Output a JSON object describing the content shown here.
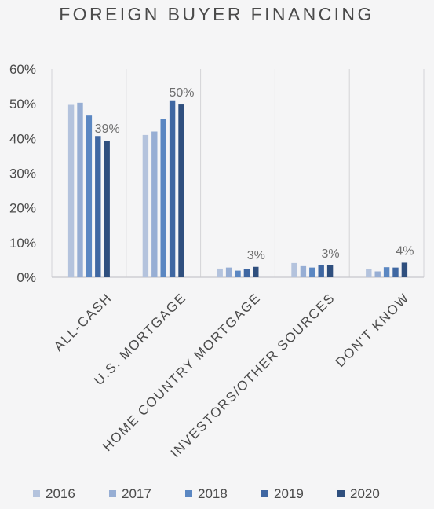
{
  "chart_data": {
    "type": "bar",
    "title": "FOREIGN BUYER FINANCING",
    "categories": [
      "ALL-CASH",
      "U.S. MORTGAGE",
      "HOME COUNTRY MORTGAGE",
      "INVESTORS/OTHER SOURCES",
      "DON'T KNOW"
    ],
    "series": [
      {
        "name": "2016",
        "color": "#b4c3dd",
        "values": [
          49.7,
          41.0,
          2.5,
          4.1,
          2.3
        ]
      },
      {
        "name": "2017",
        "color": "#97aed4",
        "values": [
          50.3,
          42.0,
          2.8,
          3.2,
          1.7
        ]
      },
      {
        "name": "2018",
        "color": "#5b87c2",
        "values": [
          46.6,
          45.6,
          1.9,
          2.8,
          2.9
        ]
      },
      {
        "name": "2019",
        "color": "#3f67a2",
        "values": [
          40.7,
          51.0,
          2.4,
          3.4,
          2.8
        ]
      },
      {
        "name": "2020",
        "color": "#2f4f7e",
        "values": [
          39.4,
          49.8,
          3.0,
          3.4,
          4.2
        ]
      }
    ],
    "data_labels": [
      "39%",
      "50%",
      "3%",
      "3%",
      "4%"
    ],
    "y_ticks": [
      "0%",
      "10%",
      "20%",
      "30%",
      "40%",
      "50%",
      "60%"
    ],
    "ylim": [
      0,
      60
    ],
    "grid": "vertical category separators",
    "legend_position": "bottom"
  }
}
